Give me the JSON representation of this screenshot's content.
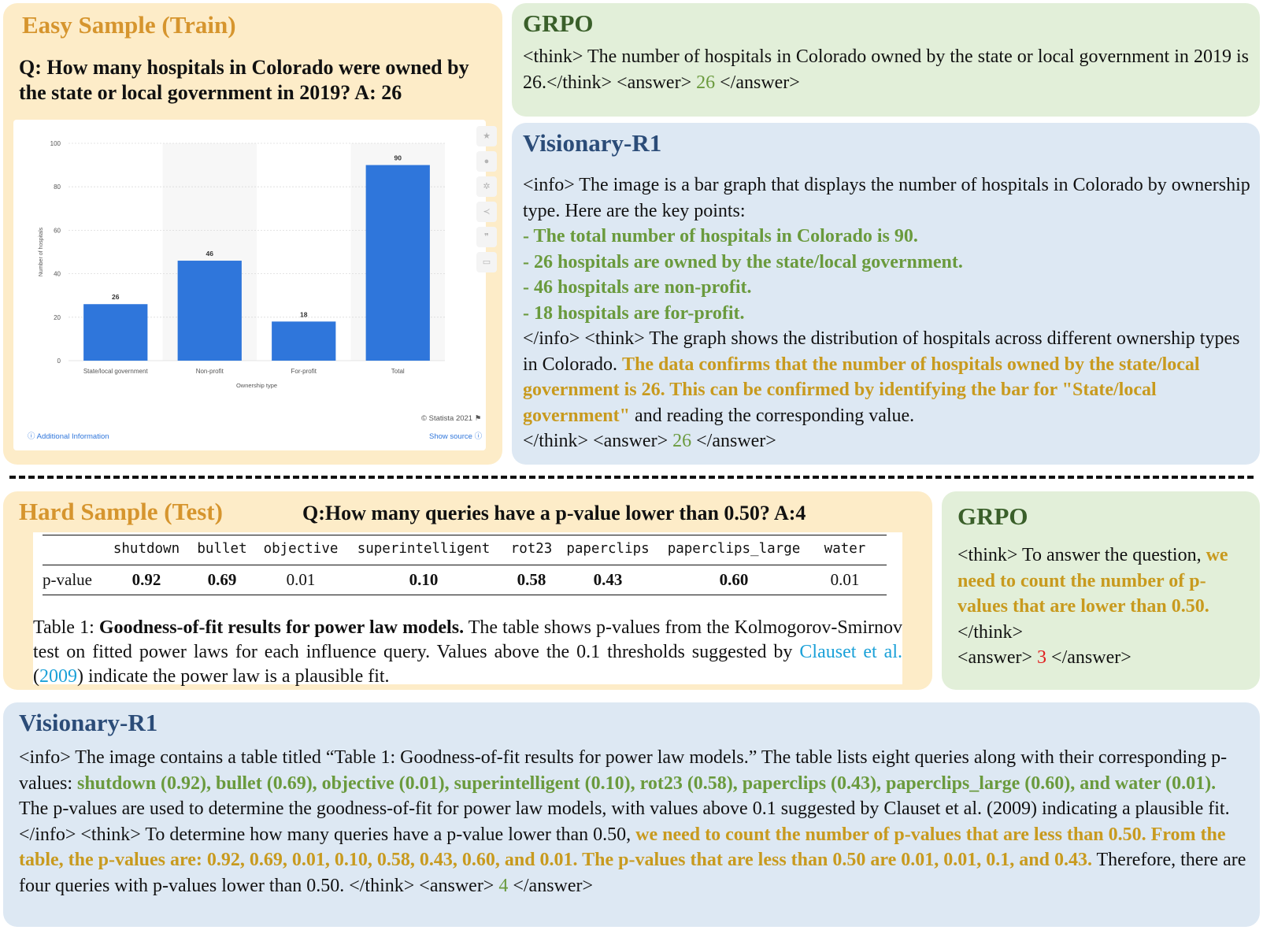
{
  "easy": {
    "title": "Easy Sample (Train)",
    "question": "Q: How many hospitals in Colorado were owned by the state or local government in 2019? A: 26",
    "chart_footer": {
      "copyright": "© Statista 2021",
      "additional_info": "Additional Information",
      "show_source": "Show source"
    }
  },
  "chart_data": {
    "type": "bar",
    "categories": [
      "State/local government",
      "Non-profit",
      "For-profit",
      "Total"
    ],
    "values": [
      26,
      46,
      18,
      90
    ],
    "value_labels": [
      "26",
      "46",
      "18",
      "90"
    ],
    "xlabel": "Ownership type",
    "ylabel": "Number of hospitals",
    "ylim": [
      0,
      100
    ],
    "yticks": [
      "0",
      "20",
      "40",
      "60",
      "80",
      "100"
    ],
    "bar_color": "#2f76db",
    "grid": true
  },
  "grpo_top": {
    "title": "GRPO",
    "text_before": "<think> The number of hospitals in Colorado owned by the state or local government in 2019 is 26.</think> <answer> ",
    "answer": "26",
    "text_after": " </answer>"
  },
  "visionary_top": {
    "title": "Visionary-R1",
    "intro": "<info> The image is a bar graph that displays the number of hospitals in Colorado by ownership type. Here are the key points:",
    "points": [
      "- The total number of hospitals in Colorado is 90.",
      "- 26 hospitals are owned by the state/local government.",
      "- 46 hospitals are non-profit.",
      "- 18 hospitals are for-profit."
    ],
    "think_start": "</info> <think> The graph shows the distribution of hospitals across different ownership types in Colorado. ",
    "think_highlight": "The data confirms that the number of hospitals owned by the state/local government is 26. This can be confirmed by identifying the bar for \"State/local government\"",
    "think_end": " and reading the corresponding value.",
    "closing_before": "</think> <answer> ",
    "answer": "26",
    "closing_after": " </answer>"
  },
  "hard": {
    "title": "Hard Sample (Test)",
    "question": "Q:How many queries have a p-value lower than 0.50? A:4",
    "table": {
      "row_label": "p-value",
      "columns": [
        "shutdown",
        "bullet",
        "objective",
        "superintelligent",
        "rot23",
        "paperclips",
        "paperclips_large",
        "water"
      ],
      "values": [
        "0.92",
        "0.69",
        "0.01",
        "0.10",
        "0.58",
        "0.43",
        "0.60",
        "0.01"
      ],
      "bold": [
        true,
        true,
        false,
        true,
        true,
        true,
        true,
        false
      ]
    },
    "caption": {
      "label": "Table 1: ",
      "bold_title": "Goodness-of-fit results for power law models.",
      "text": " The table shows p-values from the Kolmogorov-Smirnov test on fitted power laws for each influence query.  Values above the 0.1 thresholds suggested by ",
      "cite_name": "Clauset et al.",
      "paren_open": " (",
      "cite_year": "2009",
      "paren_close": ")",
      "text_end": " indicate the power law is a plausible fit."
    }
  },
  "grpo_bottom": {
    "title": "GRPO",
    "think_start": "<think> To answer the question, ",
    "highlight": "we need to count the number of p-values that are lower than 0.50.",
    "think_end": " </think>",
    "answer_before": "<answer> ",
    "answer": "3",
    "answer_after": " </answer>"
  },
  "visionary_bottom": {
    "title": "Visionary-R1",
    "intro": "<info> The image contains a table titled “Table 1: Goodness-of-fit results for power law models.” The table lists eight queries along with their corresponding p-values: ",
    "values_highlight": "shutdown (0.92), bullet (0.69), objective (0.01), superintelligent (0.10), rot23 (0.58), paperclips (0.43), paperclips_large (0.60), and water (0.01).",
    "middle": " The p-values are used to determine the goodness-of-fit for power law models, with values above 0.1 suggested by Clauset et al. (2009) indicating a plausible fit. </info> <think> To determine how many queries have a p-value lower than 0.50, ",
    "think_highlight": "we need to count the number of p-values that are less than 0.50. From the table, the p-values are: 0.92, 0.69, 0.01, 0.10, 0.58, 0.43, 0.60, and 0.01. The p-values that are less than 0.50 are 0.01, 0.01, 0.1, and 0.43.",
    "end": " Therefore, there are four queries with p-values lower than 0.50. </think> <answer> ",
    "answer": "4",
    "closing": " </answer>"
  },
  "colors": {
    "yellow_panel": "#fdecc8",
    "green_panel": "#e2efd9",
    "blue_panel": "#dde8f3",
    "orange_title": "#d6952e",
    "green_title": "#3a5f2a",
    "blue_title": "#2b4c78",
    "green_highlight": "#6a9a3d",
    "gold_highlight": "#c89a1e",
    "wrong_answer": "#e02020",
    "citation": "#1ba1d8"
  }
}
